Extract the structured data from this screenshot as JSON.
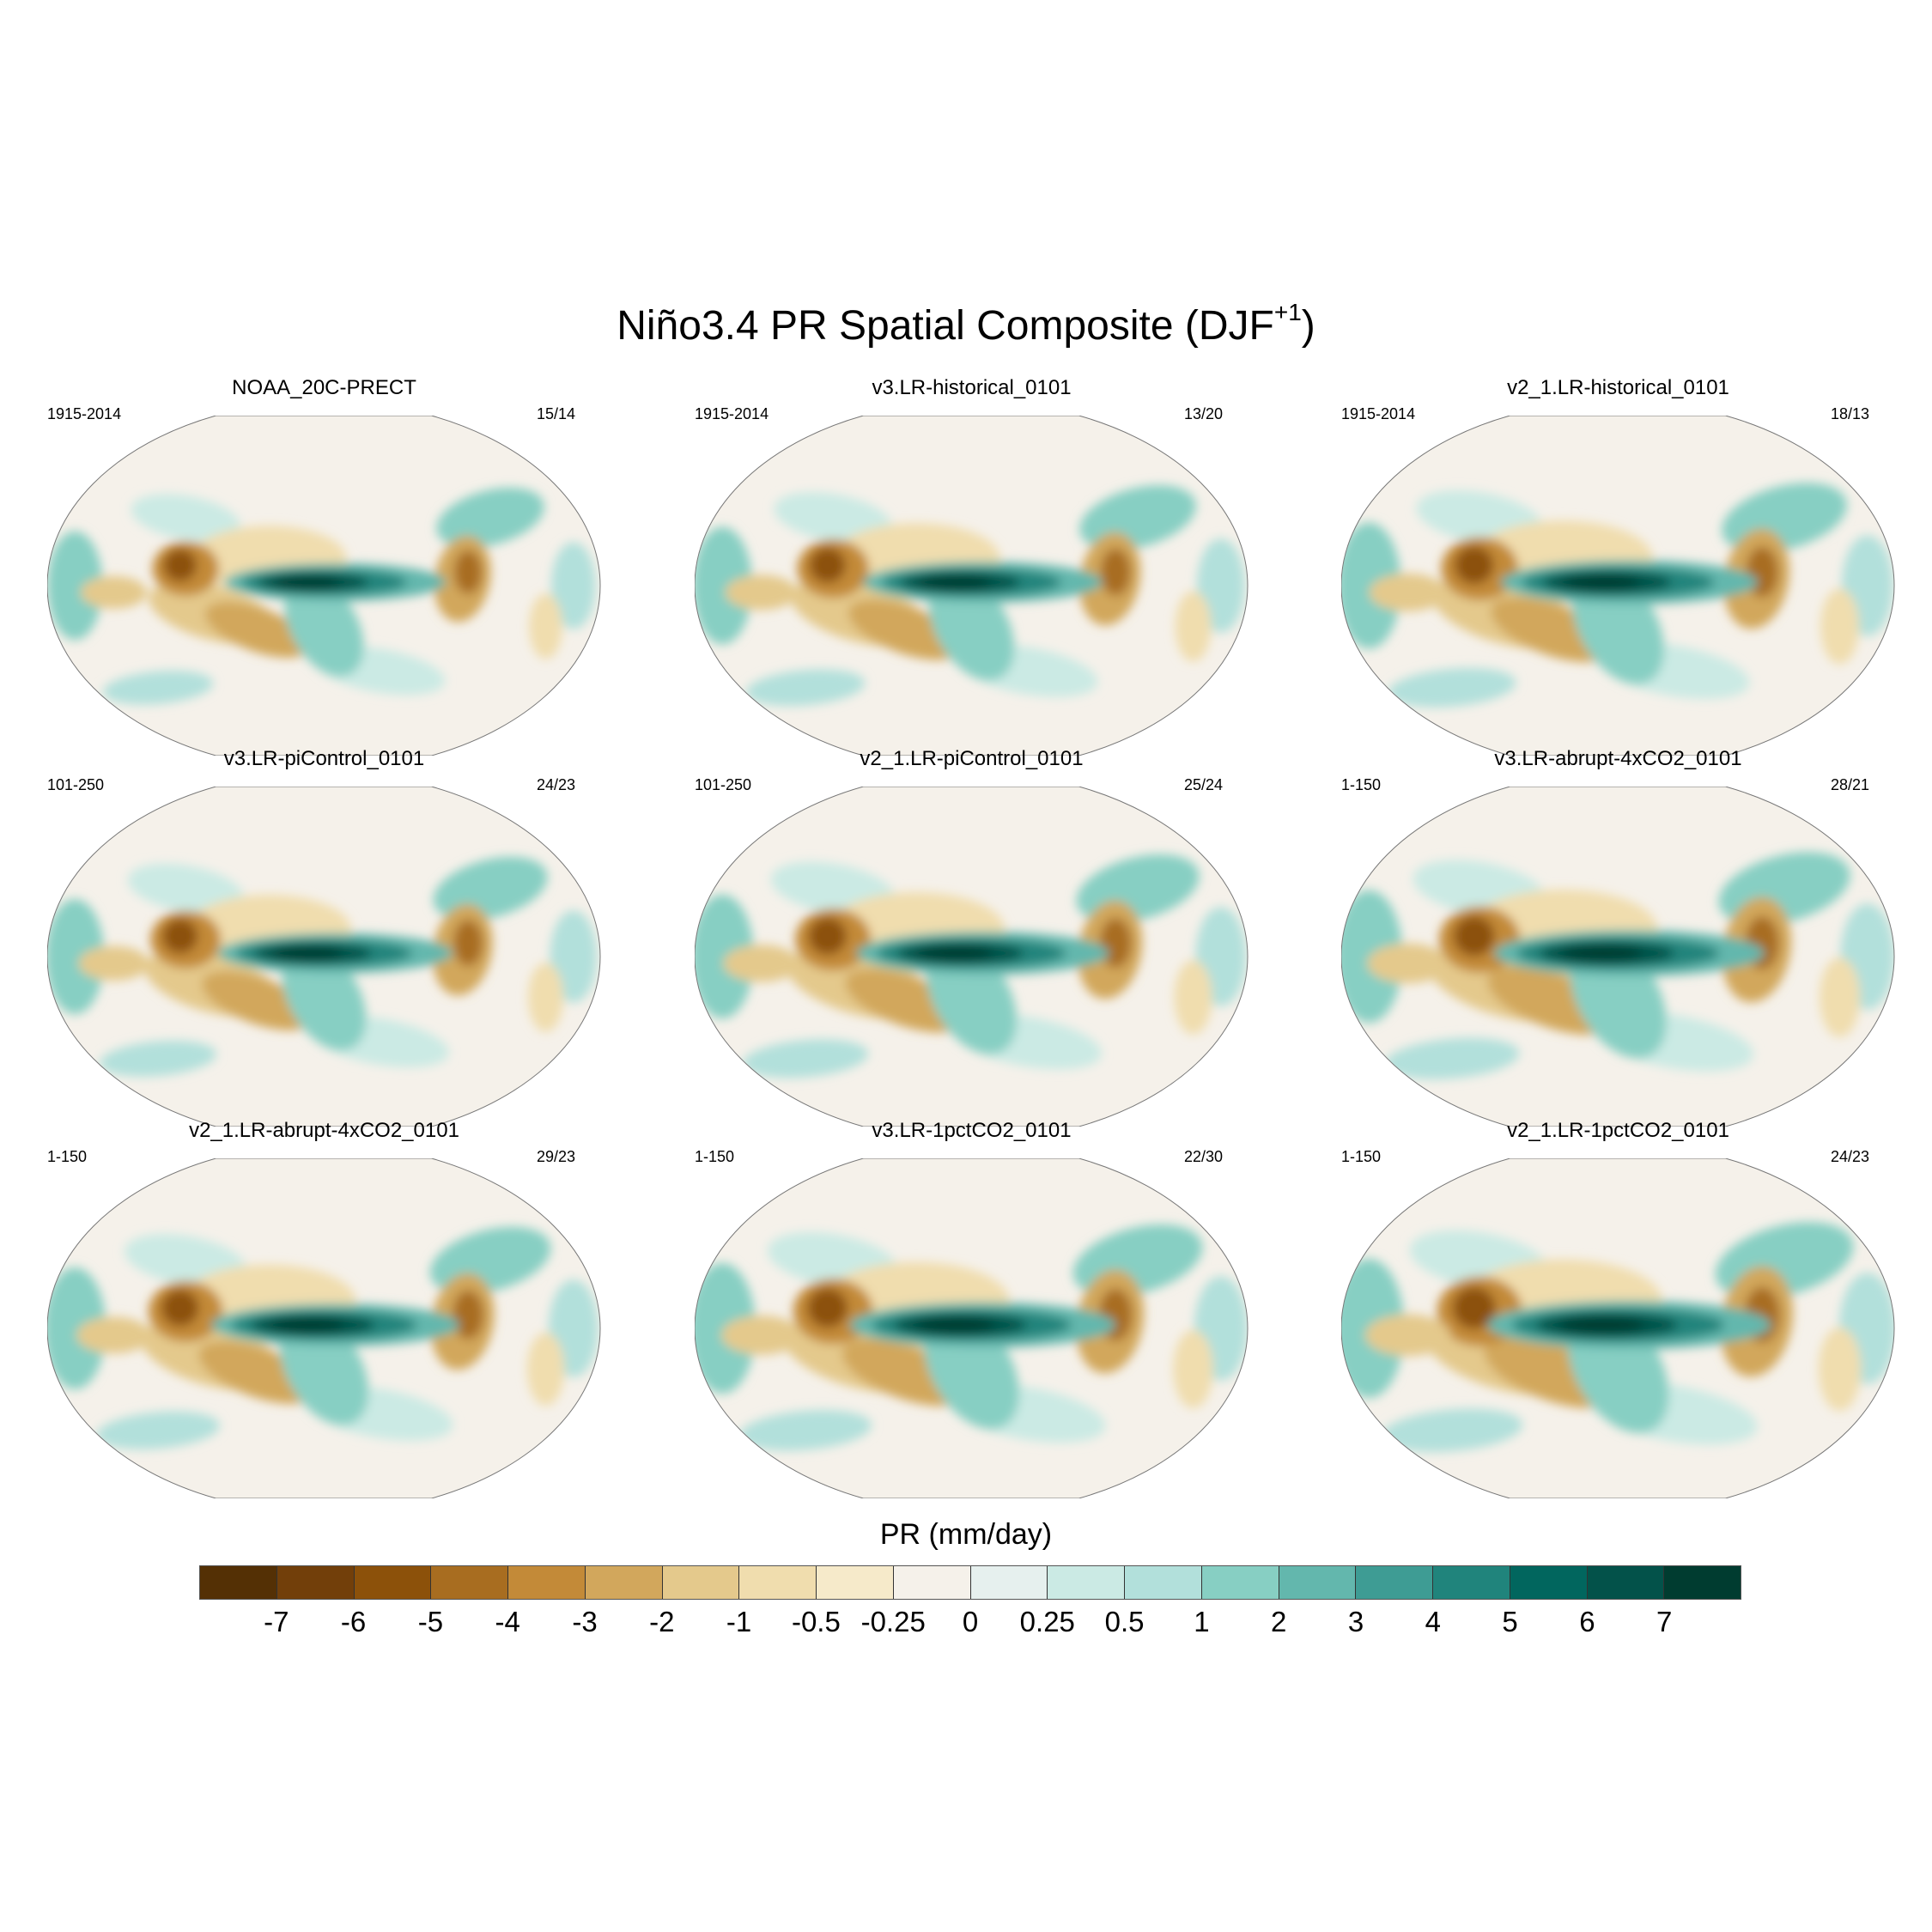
{
  "chart_data": {
    "type": "heatmap",
    "title": {
      "main": "Niño3.4 PR Spatial Composite (DJF",
      "superscript": "+1",
      "close": ")"
    },
    "panels": [
      {
        "name": "NOAA_20C-PRECT",
        "period": "1915-2014",
        "counts": "15/14"
      },
      {
        "name": "v3.LR-historical_0101",
        "period": "1915-2014",
        "counts": "13/20"
      },
      {
        "name": "v2_1.LR-historical_0101",
        "period": "1915-2014",
        "counts": "18/13"
      },
      {
        "name": "v3.LR-piControl_0101",
        "period": "101-250",
        "counts": "24/23"
      },
      {
        "name": "v2_1.LR-piControl_0101",
        "period": "101-250",
        "counts": "25/24"
      },
      {
        "name": "v3.LR-abrupt-4xCO2_0101",
        "period": "1-150",
        "counts": "28/21"
      },
      {
        "name": "v2_1.LR-abrupt-4xCO2_0101",
        "period": "1-150",
        "counts": "29/23"
      },
      {
        "name": "v3.LR-1pctCO2_0101",
        "period": "1-150",
        "counts": "22/30"
      },
      {
        "name": "v2_1.LR-1pctCO2_0101",
        "period": "1-150",
        "counts": "24/23"
      }
    ],
    "colorbar": {
      "title": "PR (mm/day)",
      "levels": [
        "-7",
        "-6",
        "-5",
        "-4",
        "-3",
        "-2",
        "-1",
        "-0.5",
        "-0.25",
        "0",
        "0.25",
        "0.5",
        "1",
        "2",
        "3",
        "4",
        "5",
        "6",
        "7"
      ],
      "colors": [
        "#543005",
        "#723f0a",
        "#8c510a",
        "#a86d20",
        "#c38a38",
        "#d2a75c",
        "#e4c98c",
        "#f0ddae",
        "#f6eaca",
        "#f5f1ea",
        "#e6f0ee",
        "#cbeae4",
        "#b2e0db",
        "#87cfc3",
        "#63b7ad",
        "#3e9c94",
        "#20847c",
        "#01665e",
        "#03524a",
        "#003c30"
      ]
    }
  }
}
